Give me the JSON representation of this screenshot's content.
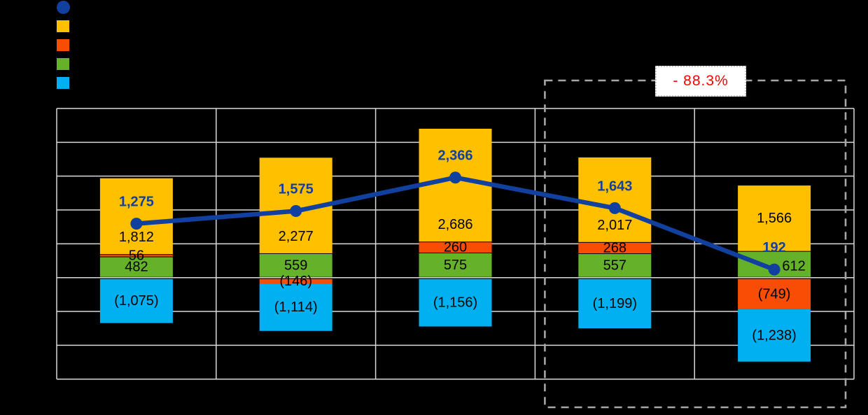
{
  "window": {
    "background": "#000000"
  },
  "legend": {
    "items": [
      {
        "name": "net-total-line",
        "shape": "circle",
        "color": "#11409e",
        "label": ""
      },
      {
        "name": "series-yellow",
        "shape": "square",
        "color": "#ffc000",
        "label": ""
      },
      {
        "name": "series-orange",
        "shape": "square",
        "color": "#f94d05",
        "label": ""
      },
      {
        "name": "series-green",
        "shape": "square",
        "color": "#65b22a",
        "label": ""
      },
      {
        "name": "series-cyan",
        "shape": "square",
        "color": "#00b0f0",
        "label": ""
      }
    ]
  },
  "annotation": {
    "change_label": "- 88.3%",
    "text_color": "#ff0000",
    "box_fill": "#ffffff",
    "box_border_color": "#c8c8c8"
  },
  "chart_data": {
    "type": "combo-stacked-bar-line",
    "categories": [
      "",
      "",
      "",
      "",
      ""
    ],
    "series": [
      {
        "name": "green",
        "color": "#65b22a",
        "values": [
          482,
          559,
          575,
          557,
          612
        ]
      },
      {
        "name": "orange",
        "color": "#f94d05",
        "values": [
          56,
          -146,
          260,
          268,
          -749
        ]
      },
      {
        "name": "yellow",
        "color": "#ffc000",
        "values": [
          1812,
          2277,
          2686,
          2017,
          1566
        ]
      },
      {
        "name": "cyan",
        "color": "#00b0f0",
        "values": [
          -1075,
          -1114,
          -1156,
          -1199,
          -1238
        ]
      }
    ],
    "line_series": {
      "name": "net-total",
      "color": "#11409e",
      "values": [
        1275,
        1575,
        2366,
        1643,
        192
      ]
    },
    "data_label_color": "#000000",
    "line_label_color": "#11409e",
    "ylim": [
      -2400,
      4000
    ],
    "grid_step": 800,
    "grid": true,
    "gridline_color": "#d9d9d9",
    "legend_position": "top-left",
    "highlight_region": {
      "from_category_index": 3,
      "to_category_index": 4,
      "label": "- 88.3%",
      "border_color": "#a6a6a6"
    },
    "label_adjustments": [
      {
        "series": "green",
        "index": 4,
        "dx": 28,
        "dy": 3
      }
    ],
    "number_format": "thousands comma; negatives shown in parentheses"
  }
}
